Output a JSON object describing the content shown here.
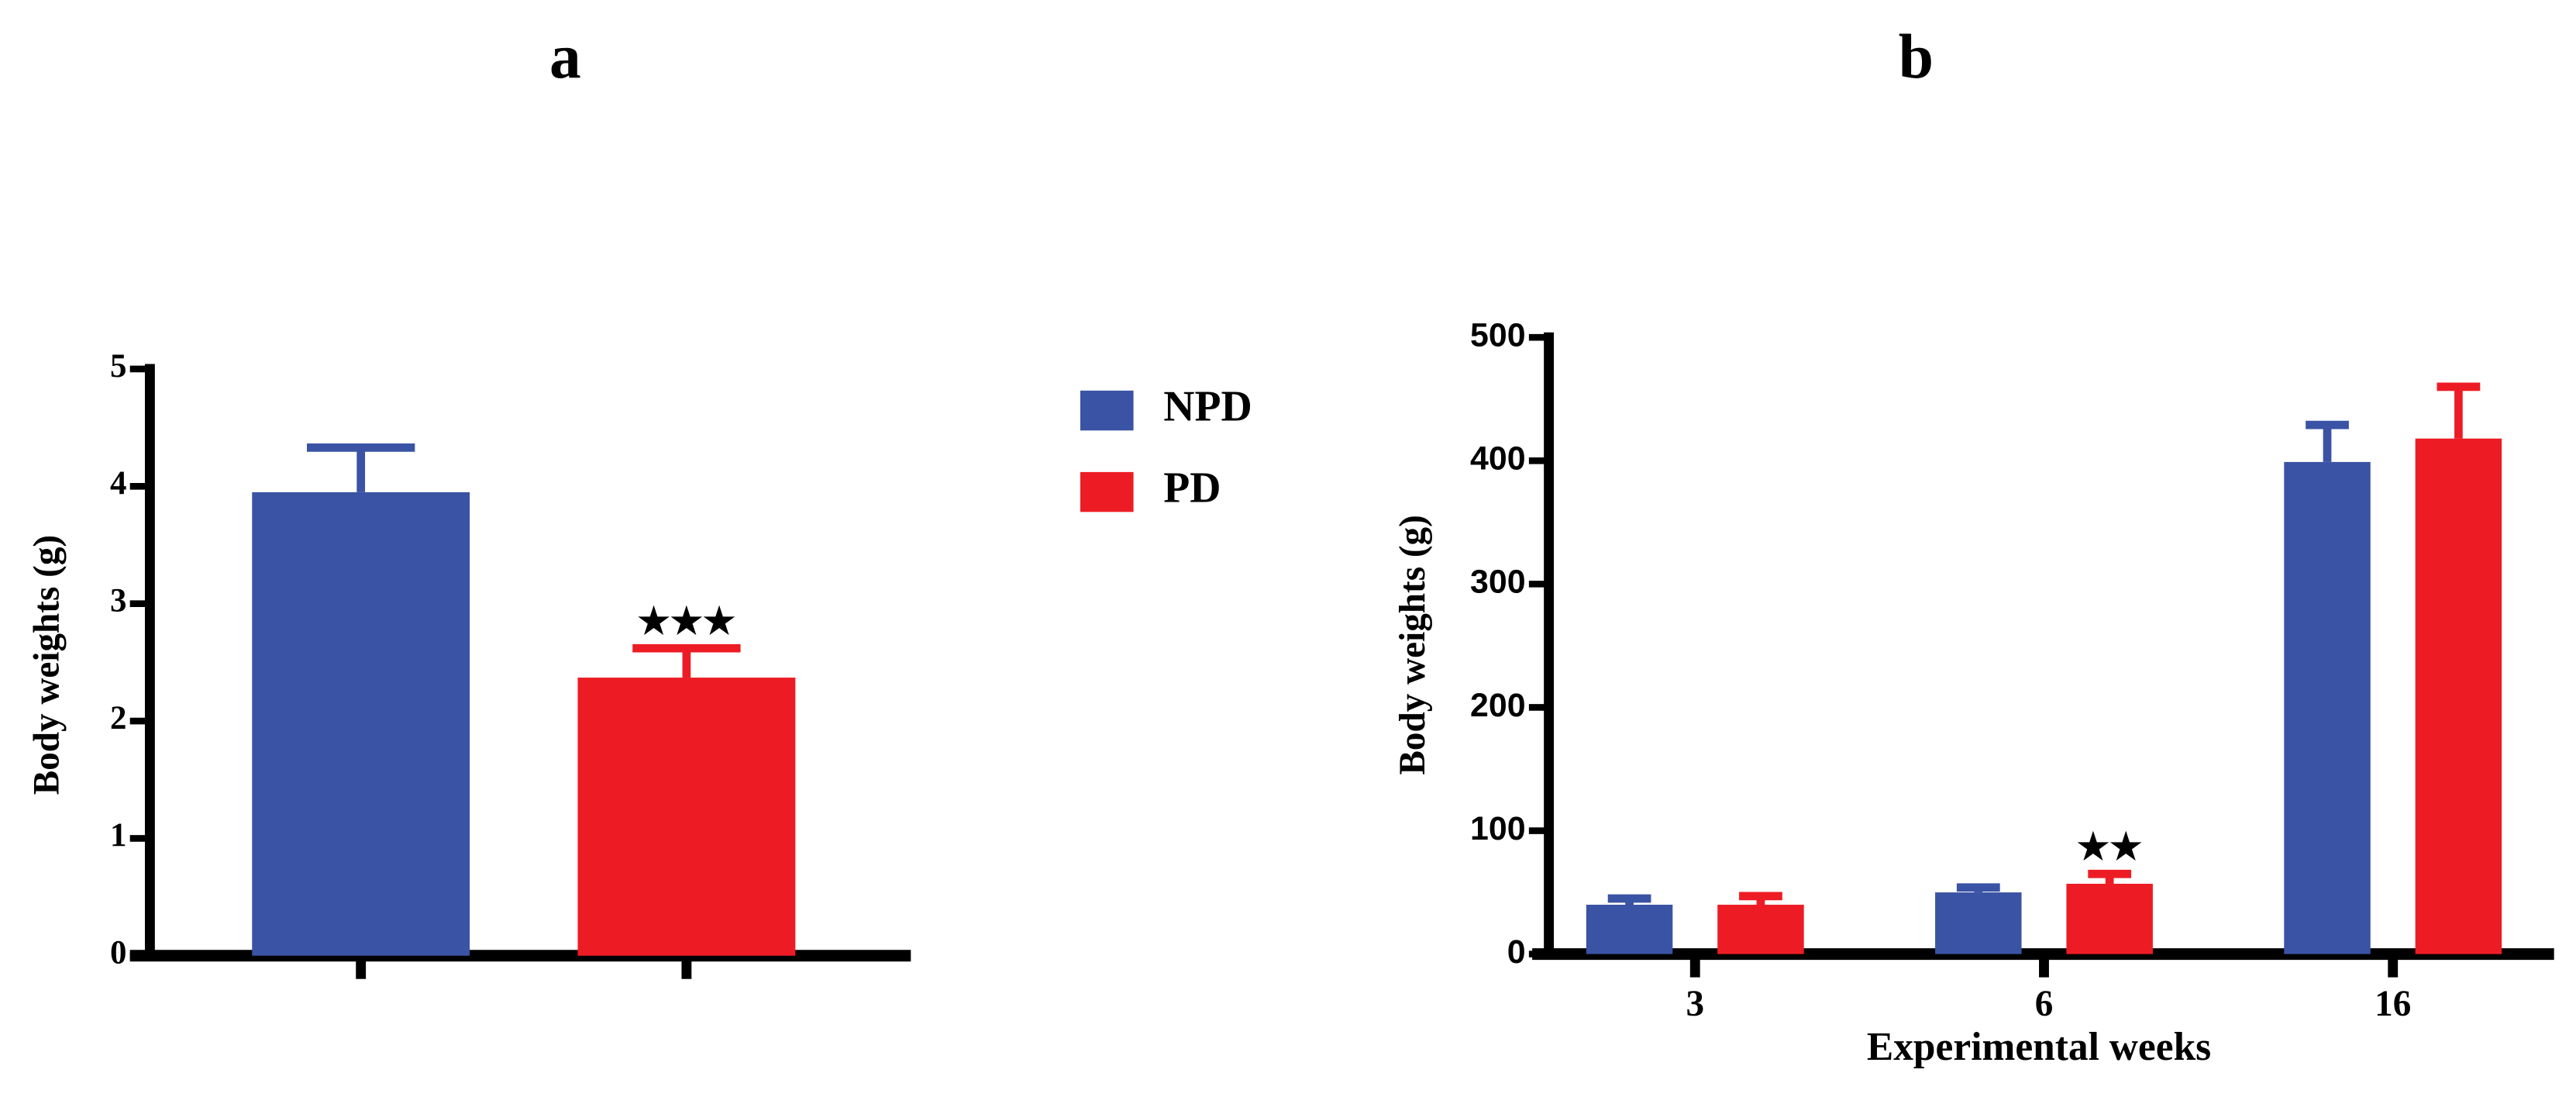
{
  "charts": [
    {
      "chart_data": {
        "type": "bar",
        "title": "a",
        "y_label": "Body weights (g)",
        "categories": [
          null,
          null
        ],
        "series": [
          {
            "name": "NPD",
            "color": "#3a53a4",
            "values": [
              3.95,
              null
            ],
            "errors": [
              0.38,
              null
            ],
            "annotations": [
              null,
              null
            ]
          },
          {
            "name": "PD",
            "color": "#ed1c24",
            "values": [
              null,
              2.37
            ],
            "errors": [
              null,
              0.25
            ],
            "annotations": [
              null,
              "★★★"
            ]
          }
        ],
        "ylim": [
          0,
          5
        ],
        "yticks": [
          0,
          1,
          2,
          3,
          4,
          5
        ],
        "legend": "right"
      }
    },
    {
      "chart_data": {
        "type": "bar",
        "title": "b",
        "y_label": "Body weights (g)",
        "x_label": "Experimental weeks",
        "categories": [
          "3",
          "6",
          "16"
        ],
        "series": [
          {
            "color": "#3a53a4",
            "values": [
              40,
              50,
              399
            ],
            "errors": [
              5,
              4,
              30
            ],
            "annotations": [
              null,
              null,
              null
            ]
          },
          {
            "color": "#ed1c24",
            "values": [
              40,
              57,
              418
            ],
            "errors": [
              7,
              8,
              42
            ],
            "annotations": [
              null,
              "★★",
              null
            ]
          }
        ],
        "ylim": [
          0,
          500
        ],
        "yticks": [
          0,
          100,
          200,
          300,
          400,
          500
        ]
      }
    }
  ]
}
